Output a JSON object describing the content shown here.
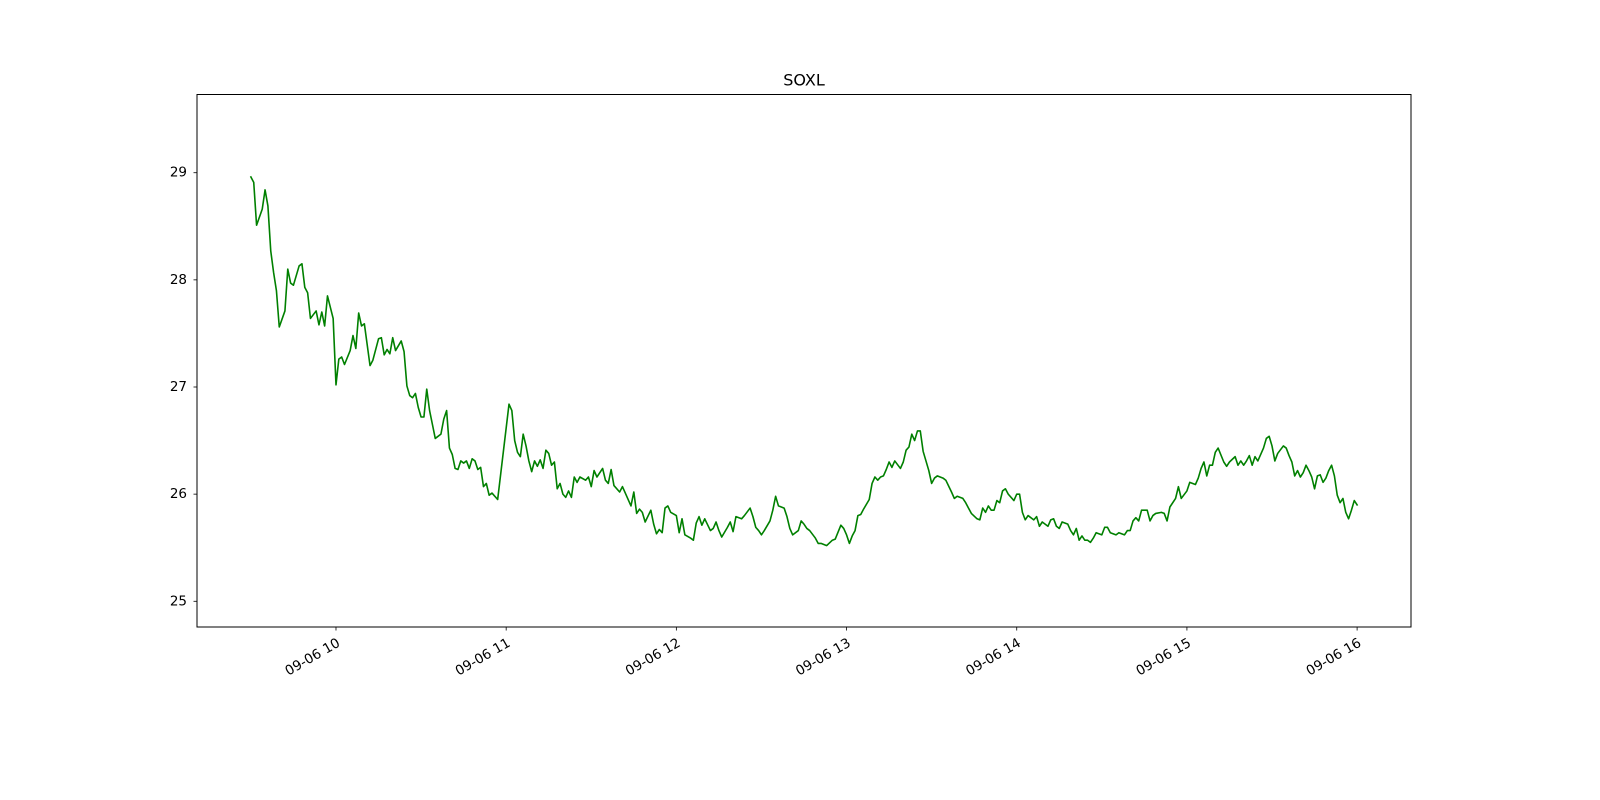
{
  "chart_data": {
    "type": "line",
    "title": "SOXL",
    "color": "#008000",
    "xlim": [
      551,
      979
    ],
    "xticks": [
      {
        "value": 600,
        "label": "09-06 10"
      },
      {
        "value": 660,
        "label": "09-06 11"
      },
      {
        "value": 720,
        "label": "09-06 12"
      },
      {
        "value": 780,
        "label": "09-06 13"
      },
      {
        "value": 840,
        "label": "09-06 14"
      },
      {
        "value": 900,
        "label": "09-06 15"
      },
      {
        "value": 960,
        "label": "09-06 16"
      }
    ],
    "ylim": [
      24.76,
      29.73
    ],
    "yticks": [
      25,
      26,
      27,
      28,
      29
    ],
    "grid": false,
    "x": [
      570,
      571,
      572,
      574,
      575,
      576,
      577,
      578,
      579,
      580,
      582,
      583,
      584,
      585,
      587,
      588,
      589,
      590,
      591,
      593,
      594,
      595,
      596,
      597,
      599,
      600,
      601,
      602,
      603,
      605,
      606,
      607,
      608,
      609,
      610,
      612,
      613,
      615,
      616,
      617,
      618,
      619,
      620,
      621,
      623,
      624,
      625,
      626,
      627,
      628,
      629,
      630,
      631,
      632,
      633,
      634,
      635,
      637,
      638,
      639,
      640,
      641,
      642,
      643,
      644,
      645,
      646,
      647,
      648,
      649,
      650,
      651,
      652,
      653,
      654,
      655,
      657,
      661,
      662,
      663,
      664,
      665,
      666,
      667,
      668,
      669,
      670,
      671,
      672,
      673,
      674,
      675,
      676,
      677,
      678,
      679,
      680,
      681,
      682,
      683,
      684,
      685,
      686,
      688,
      689,
      690,
      691,
      692,
      694,
      695,
      696,
      697,
      698,
      700,
      701,
      702,
      704,
      705,
      706,
      707,
      708,
      709,
      711,
      712,
      713,
      714,
      715,
      716,
      717,
      718,
      720,
      721,
      722,
      723,
      725,
      726,
      727,
      728,
      729,
      730,
      732,
      733,
      734,
      735,
      736,
      738,
      739,
      740,
      741,
      743,
      744,
      746,
      747,
      748,
      749,
      750,
      751,
      753,
      754,
      755,
      756,
      758,
      759,
      760,
      761,
      763,
      764,
      765,
      766,
      767,
      769,
      770,
      771,
      772,
      773,
      775,
      776,
      778,
      779,
      780,
      781,
      782,
      783,
      784,
      785,
      786,
      788,
      789,
      790,
      791,
      792,
      793,
      794,
      795,
      796,
      797,
      799,
      800,
      801,
      802,
      803,
      804,
      805,
      806,
      807,
      808,
      809,
      810,
      811,
      812,
      814,
      815,
      817,
      818,
      819,
      821,
      822,
      823,
      824,
      826,
      827,
      828,
      829,
      830,
      831,
      832,
      833,
      834,
      835,
      836,
      837,
      839,
      840,
      841,
      842,
      843,
      844,
      846,
      847,
      848,
      849,
      851,
      852,
      853,
      854,
      855,
      856,
      858,
      859,
      860,
      861,
      862,
      863,
      864,
      865,
      866,
      867,
      868,
      870,
      871,
      872,
      873,
      875,
      876,
      878,
      879,
      880,
      881,
      882,
      883,
      884,
      886,
      887,
      888,
      889,
      891,
      892,
      893,
      894,
      896,
      897,
      898,
      900,
      901,
      903,
      904,
      905,
      906,
      907,
      908,
      909,
      910,
      911,
      913,
      914,
      915,
      917,
      918,
      919,
      920,
      921,
      922,
      923,
      924,
      925,
      927,
      928,
      929,
      930,
      931,
      932,
      934,
      935,
      936,
      937,
      938,
      939,
      940,
      941,
      942,
      943,
      944,
      945,
      946,
      947,
      948,
      949,
      950,
      951,
      952,
      953,
      954,
      955,
      956,
      957,
      958,
      959,
      960
    ],
    "values": [
      28.96,
      28.91,
      28.51,
      28.66,
      28.84,
      28.69,
      28.27,
      28.07,
      27.9,
      27.56,
      27.71,
      28.1,
      27.97,
      27.95,
      28.13,
      28.15,
      27.93,
      27.88,
      27.64,
      27.71,
      27.58,
      27.7,
      27.57,
      27.85,
      27.64,
      27.02,
      27.26,
      27.28,
      27.21,
      27.34,
      27.48,
      27.36,
      27.69,
      27.57,
      27.59,
      27.2,
      27.25,
      27.45,
      27.46,
      27.3,
      27.35,
      27.31,
      27.46,
      27.34,
      27.43,
      27.33,
      27.01,
      26.92,
      26.9,
      26.94,
      26.81,
      26.72,
      26.72,
      26.98,
      26.78,
      26.65,
      26.52,
      26.56,
      26.7,
      26.78,
      26.43,
      26.37,
      26.24,
      26.23,
      26.31,
      26.29,
      26.31,
      26.24,
      26.33,
      26.31,
      26.23,
      26.25,
      26.07,
      26.1,
      25.99,
      26.01,
      25.95,
      26.84,
      26.78,
      26.5,
      26.39,
      26.35,
      26.56,
      26.45,
      26.31,
      26.21,
      26.31,
      26.26,
      26.32,
      26.24,
      26.41,
      26.38,
      26.27,
      26.3,
      26.05,
      26.1,
      26.0,
      25.97,
      26.03,
      25.97,
      26.16,
      26.11,
      26.16,
      26.13,
      26.16,
      26.07,
      26.22,
      26.16,
      26.24,
      26.13,
      26.1,
      26.23,
      26.08,
      26.02,
      26.07,
      26.01,
      25.89,
      26.02,
      25.82,
      25.86,
      25.83,
      25.74,
      25.85,
      25.72,
      25.63,
      25.67,
      25.64,
      25.87,
      25.89,
      25.83,
      25.8,
      25.64,
      25.77,
      25.62,
      25.59,
      25.57,
      25.73,
      25.79,
      25.71,
      25.77,
      25.66,
      25.68,
      25.74,
      25.66,
      25.6,
      25.69,
      25.74,
      25.65,
      25.79,
      25.77,
      25.8,
      25.87,
      25.79,
      25.69,
      25.66,
      25.62,
      25.66,
      25.75,
      25.85,
      25.98,
      25.89,
      25.87,
      25.79,
      25.68,
      25.62,
      25.66,
      25.75,
      25.72,
      25.68,
      25.66,
      25.59,
      25.54,
      25.54,
      25.53,
      25.52,
      25.57,
      25.58,
      25.71,
      25.68,
      25.62,
      25.54,
      25.61,
      25.66,
      25.8,
      25.81,
      25.86,
      25.95,
      26.1,
      26.16,
      26.13,
      26.16,
      26.17,
      26.23,
      26.3,
      26.25,
      26.31,
      26.24,
      26.3,
      26.41,
      26.44,
      26.56,
      26.5,
      26.59,
      26.59,
      26.4,
      26.31,
      26.22,
      26.1,
      26.15,
      26.17,
      26.15,
      26.13,
      26.02,
      25.96,
      25.98,
      25.96,
      25.92,
      25.87,
      25.82,
      25.77,
      25.76,
      25.87,
      25.83,
      25.89,
      25.85,
      25.85,
      25.94,
      25.92,
      26.03,
      26.05,
      26.0,
      25.94,
      26.0,
      26.0,
      25.83,
      25.76,
      25.8,
      25.76,
      25.79,
      25.7,
      25.74,
      25.7,
      25.76,
      25.77,
      25.7,
      25.68,
      25.74,
      25.72,
      25.66,
      25.62,
      25.68,
      25.57,
      25.61,
      25.57,
      25.57,
      25.55,
      25.59,
      25.64,
      25.62,
      25.69,
      25.69,
      25.64,
      25.62,
      25.64,
      25.62,
      25.66,
      25.66,
      25.75,
      25.78,
      25.75,
      25.85,
      25.85,
      25.75,
      25.8,
      25.82,
      25.83,
      25.82,
      25.75,
      25.88,
      25.96,
      26.07,
      25.96,
      26.03,
      26.11,
      26.09,
      26.15,
      26.24,
      26.3,
      26.17,
      26.27,
      26.27,
      26.39,
      26.43,
      26.3,
      26.26,
      26.3,
      26.35,
      26.27,
      26.31,
      26.27,
      26.31,
      26.36,
      26.27,
      26.35,
      26.31,
      26.43,
      26.52,
      26.54,
      26.45,
      26.31,
      26.38,
      26.45,
      26.43,
      26.36,
      26.3,
      26.17,
      26.22,
      26.16,
      26.2,
      26.27,
      26.22,
      26.16,
      26.05,
      26.17,
      26.18,
      26.11,
      26.15,
      26.22,
      26.27,
      26.17,
      25.99,
      25.92,
      25.96,
      25.83,
      25.77,
      25.85,
      25.94,
      25.9
    ]
  }
}
